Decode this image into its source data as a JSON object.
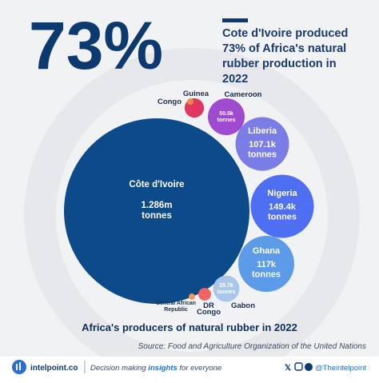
{
  "headline": "73%",
  "chart_data": {
    "type": "bubble",
    "title": "Cote d'Ivoire produced 73% of Africa's natural rubber production in 2022",
    "subtitle": "Africa's producers of natural rubber in 2022",
    "source": "Source: Food and Agriculture Organization of the United Nations",
    "categories": [
      "Côte d'Ivoire",
      "Nigeria",
      "Ghana",
      "Liberia",
      "Cameroon",
      "Gabon",
      "Guinea",
      "DR Congo",
      "Congo",
      "Central African Republic"
    ],
    "values": [
      1286000,
      149400,
      117000,
      107100,
      50500,
      25700,
      14000,
      6000,
      1500,
      1500
    ],
    "value_labels": [
      "1.286m tonnes",
      "149.4k tonnes",
      "117k tonnes",
      "107.1k tonnes",
      "50.5k tonnes",
      "25.7k tonnes",
      null,
      null,
      null,
      null
    ],
    "colors": [
      "#0d4a8a",
      "#4f6ff3",
      "#5b9be8",
      "#7b7de6",
      "#9f4bd1",
      "#a9c7ea",
      "#e1365f",
      "#f06464",
      "#f08a4b",
      "#f29a5a"
    ]
  },
  "footer": {
    "brand": "intelpoint.co",
    "tagline": [
      "Decision making ",
      "insights",
      " for everyone"
    ],
    "handle": "@Theintelpoint"
  }
}
